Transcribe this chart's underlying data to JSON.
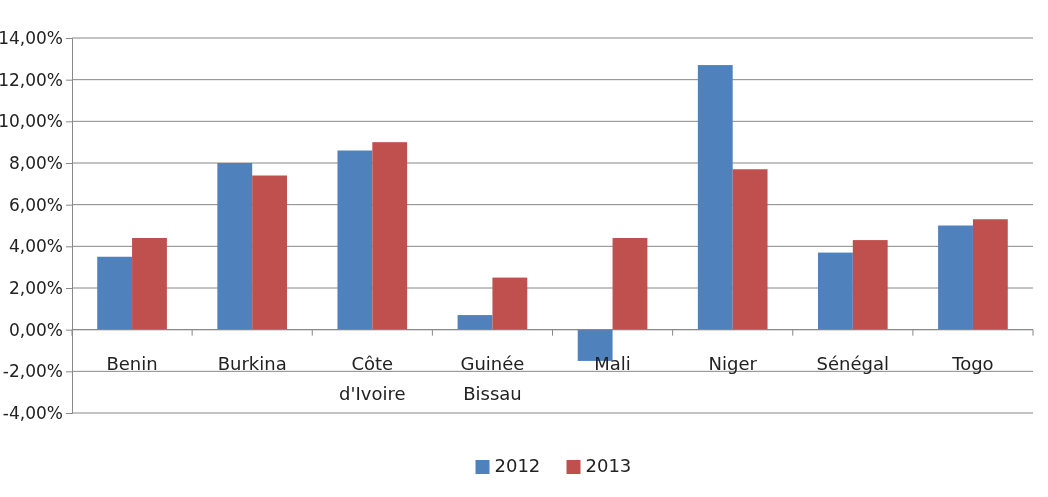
{
  "chart_data": {
    "type": "bar",
    "categories": [
      "Benin",
      "Burkina",
      "Côte d'Ivoire",
      "Guinée Bissau",
      "Mali",
      "Niger",
      "Sénégal",
      "Togo"
    ],
    "series": [
      {
        "name": "2012",
        "color": "#4f81bd",
        "values": [
          3.5,
          8.0,
          8.6,
          0.7,
          -1.5,
          12.7,
          3.7,
          5.0
        ]
      },
      {
        "name": "2013",
        "color": "#c0504d",
        "values": [
          4.4,
          7.4,
          9.0,
          2.5,
          4.4,
          7.7,
          4.3,
          5.3
        ]
      }
    ],
    "ylim": [
      -4,
      14
    ],
    "yticks": [
      {
        "value": -4,
        "label": "-4,00%"
      },
      {
        "value": -2,
        "label": "-2,00%"
      },
      {
        "value": 0,
        "label": "0,00%"
      },
      {
        "value": 2,
        "label": "2,00%"
      },
      {
        "value": 4,
        "label": "4,00%"
      },
      {
        "value": 6,
        "label": "6,00%"
      },
      {
        "value": 8,
        "label": "8,00%"
      },
      {
        "value": 10,
        "label": "10,00%"
      },
      {
        "value": 12,
        "label": "12,00%"
      },
      {
        "value": 14,
        "label": "14,00%"
      }
    ],
    "grid": "y",
    "legend": "bottom"
  }
}
